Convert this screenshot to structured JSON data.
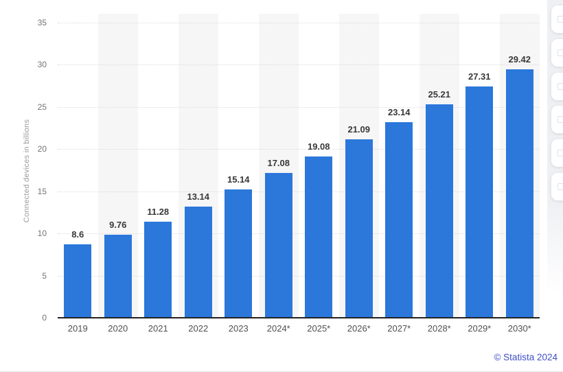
{
  "chart_data": {
    "type": "bar",
    "title": "",
    "xlabel": "",
    "ylabel": "Connected devices in billions",
    "categories": [
      "2019",
      "2020",
      "2021",
      "2022",
      "2023",
      "2024*",
      "2025*",
      "2026*",
      "2027*",
      "2028*",
      "2029*",
      "2030*"
    ],
    "values": [
      8.6,
      9.76,
      11.28,
      13.14,
      15.14,
      17.08,
      19.08,
      21.09,
      23.14,
      25.21,
      27.31,
      29.42
    ],
    "value_labels": [
      "8.6",
      "9.76",
      "11.28",
      "13.14",
      "15.14",
      "17.08",
      "19.08",
      "21.09",
      "23.14",
      "25.21",
      "27.31",
      "29.42"
    ],
    "ylim": [
      0,
      35
    ],
    "yticks": [
      0,
      5,
      10,
      15,
      20,
      25,
      30,
      35
    ],
    "grid": true,
    "legend": "none",
    "striped_columns": "alternating vertical bands behind every second year starting 2020"
  },
  "footer": {
    "credit": "© Statista 2024"
  },
  "right_toolbar": {
    "button_count": 6
  },
  "colors": {
    "bar": "#2b77da",
    "column_stripe": "#f6f6f7",
    "gridline": "#dcdcdc",
    "axis_line": "#222222",
    "value_label": "#383838",
    "tick_label": "#737373",
    "axis_title": "#9b9b9b",
    "credit": "#3e4fc6",
    "toolbar_strip_bg": "#eef0f3",
    "card_bg": "#ffffff"
  }
}
